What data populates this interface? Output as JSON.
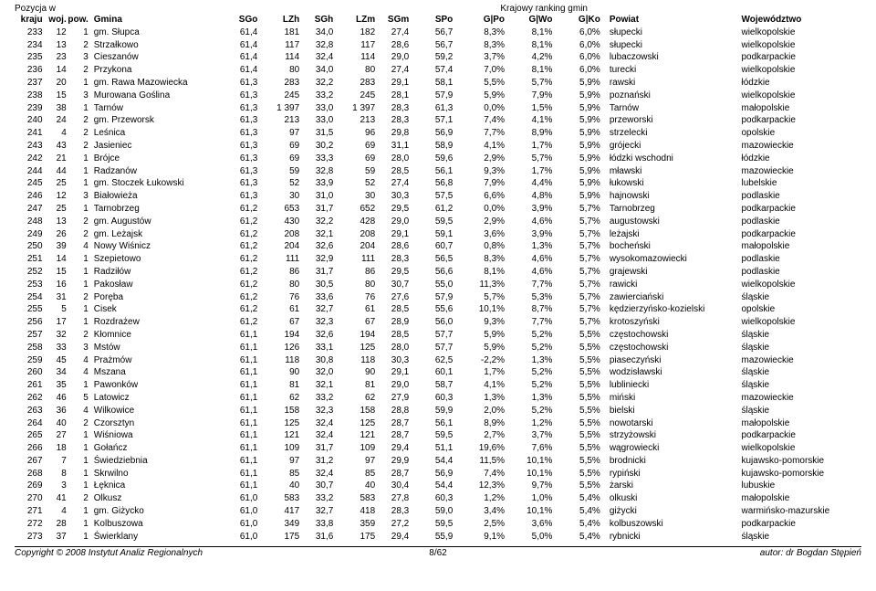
{
  "top_left": "Pozycja w",
  "top_right": "Krajowy ranking gmin",
  "headers": {
    "kraju": "kraju",
    "woj": "woj.",
    "pow": "pow.",
    "gmina": "Gmina",
    "sgo": "SGo",
    "lzh": "LZh",
    "sgh": "SGh",
    "lzm": "LZm",
    "sgm": "SGm",
    "spo": "SPo",
    "gpo": "G|Po",
    "gwo": "G|Wo",
    "gko": "G|Ko",
    "powiat": "Powiat",
    "woje": "Województwo"
  },
  "rows": [
    {
      "kraju": "233",
      "woj": "12",
      "pow": "1",
      "gmina": "gm. Słupca",
      "sgo": "61,4",
      "lzh": "181",
      "sgh": "34,0",
      "lzm": "182",
      "sgm": "27,4",
      "spo": "56,7",
      "gpo": "8,3%",
      "gwo": "8,1%",
      "gko": "6,0%",
      "powiat": "słupecki",
      "woje": "wielkopolskie"
    },
    {
      "kraju": "234",
      "woj": "13",
      "pow": "2",
      "gmina": "Strzałkowo",
      "sgo": "61,4",
      "lzh": "117",
      "sgh": "32,8",
      "lzm": "117",
      "sgm": "28,6",
      "spo": "56,7",
      "gpo": "8,3%",
      "gwo": "8,1%",
      "gko": "6,0%",
      "powiat": "słupecki",
      "woje": "wielkopolskie"
    },
    {
      "kraju": "235",
      "woj": "23",
      "pow": "3",
      "gmina": "Cieszanów",
      "sgo": "61,4",
      "lzh": "114",
      "sgh": "32,4",
      "lzm": "114",
      "sgm": "29,0",
      "spo": "59,2",
      "gpo": "3,7%",
      "gwo": "4,2%",
      "gko": "6,0%",
      "powiat": "lubaczowski",
      "woje": "podkarpackie"
    },
    {
      "kraju": "236",
      "woj": "14",
      "pow": "2",
      "gmina": "Przykona",
      "sgo": "61,4",
      "lzh": "80",
      "sgh": "34,0",
      "lzm": "80",
      "sgm": "27,4",
      "spo": "57,4",
      "gpo": "7,0%",
      "gwo": "8,1%",
      "gko": "6,0%",
      "powiat": "turecki",
      "woje": "wielkopolskie"
    },
    {
      "kraju": "237",
      "woj": "20",
      "pow": "1",
      "gmina": "gm. Rawa Mazowiecka",
      "sgo": "61,3",
      "lzh": "283",
      "sgh": "32,2",
      "lzm": "283",
      "sgm": "29,1",
      "spo": "58,1",
      "gpo": "5,5%",
      "gwo": "5,7%",
      "gko": "5,9%",
      "powiat": "rawski",
      "woje": "łódzkie"
    },
    {
      "kraju": "238",
      "woj": "15",
      "pow": "3",
      "gmina": "Murowana Goślina",
      "sgo": "61,3",
      "lzh": "245",
      "sgh": "33,2",
      "lzm": "245",
      "sgm": "28,1",
      "spo": "57,9",
      "gpo": "5,9%",
      "gwo": "7,9%",
      "gko": "5,9%",
      "powiat": "poznański",
      "woje": "wielkopolskie"
    },
    {
      "kraju": "239",
      "woj": "38",
      "pow": "1",
      "gmina": "Tarnów",
      "sgo": "61,3",
      "lzh": "1 397",
      "sgh": "33,0",
      "lzm": "1 397",
      "sgm": "28,3",
      "spo": "61,3",
      "gpo": "0,0%",
      "gwo": "1,5%",
      "gko": "5,9%",
      "powiat": "Tarnów",
      "woje": "małopolskie"
    },
    {
      "kraju": "240",
      "woj": "24",
      "pow": "2",
      "gmina": "gm. Przeworsk",
      "sgo": "61,3",
      "lzh": "213",
      "sgh": "33,0",
      "lzm": "213",
      "sgm": "28,3",
      "spo": "57,1",
      "gpo": "7,4%",
      "gwo": "4,1%",
      "gko": "5,9%",
      "powiat": "przeworski",
      "woje": "podkarpackie"
    },
    {
      "kraju": "241",
      "woj": "4",
      "pow": "2",
      "gmina": "Leśnica",
      "sgo": "61,3",
      "lzh": "97",
      "sgh": "31,5",
      "lzm": "96",
      "sgm": "29,8",
      "spo": "56,9",
      "gpo": "7,7%",
      "gwo": "8,9%",
      "gko": "5,9%",
      "powiat": "strzelecki",
      "woje": "opolskie"
    },
    {
      "kraju": "243",
      "woj": "43",
      "pow": "2",
      "gmina": "Jasieniec",
      "sgo": "61,3",
      "lzh": "69",
      "sgh": "30,2",
      "lzm": "69",
      "sgm": "31,1",
      "spo": "58,9",
      "gpo": "4,1%",
      "gwo": "1,7%",
      "gko": "5,9%",
      "powiat": "grójecki",
      "woje": "mazowieckie"
    },
    {
      "kraju": "242",
      "woj": "21",
      "pow": "1",
      "gmina": "Brójce",
      "sgo": "61,3",
      "lzh": "69",
      "sgh": "33,3",
      "lzm": "69",
      "sgm": "28,0",
      "spo": "59,6",
      "gpo": "2,9%",
      "gwo": "5,7%",
      "gko": "5,9%",
      "powiat": "łódzki wschodni",
      "woje": "łódzkie"
    },
    {
      "kraju": "244",
      "woj": "44",
      "pow": "1",
      "gmina": "Radzanów",
      "sgo": "61,3",
      "lzh": "59",
      "sgh": "32,8",
      "lzm": "59",
      "sgm": "28,5",
      "spo": "56,1",
      "gpo": "9,3%",
      "gwo": "1,7%",
      "gko": "5,9%",
      "powiat": "mławski",
      "woje": "mazowieckie"
    },
    {
      "kraju": "245",
      "woj": "25",
      "pow": "1",
      "gmina": "gm. Stoczek Łukowski",
      "sgo": "61,3",
      "lzh": "52",
      "sgh": "33,9",
      "lzm": "52",
      "sgm": "27,4",
      "spo": "56,8",
      "gpo": "7,9%",
      "gwo": "4,4%",
      "gko": "5,9%",
      "powiat": "łukowski",
      "woje": "lubelskie"
    },
    {
      "kraju": "246",
      "woj": "12",
      "pow": "3",
      "gmina": "Białowieża",
      "sgo": "61,3",
      "lzh": "30",
      "sgh": "31,0",
      "lzm": "30",
      "sgm": "30,3",
      "spo": "57,5",
      "gpo": "6,6%",
      "gwo": "4,8%",
      "gko": "5,9%",
      "powiat": "hajnowski",
      "woje": "podlaskie"
    },
    {
      "kraju": "247",
      "woj": "25",
      "pow": "1",
      "gmina": "Tarnobrzeg",
      "sgo": "61,2",
      "lzh": "653",
      "sgh": "31,7",
      "lzm": "652",
      "sgm": "29,5",
      "spo": "61,2",
      "gpo": "0,0%",
      "gwo": "3,9%",
      "gko": "5,7%",
      "powiat": "Tarnobrzeg",
      "woje": "podkarpackie"
    },
    {
      "kraju": "248",
      "woj": "13",
      "pow": "2",
      "gmina": "gm. Augustów",
      "sgo": "61,2",
      "lzh": "430",
      "sgh": "32,2",
      "lzm": "428",
      "sgm": "29,0",
      "spo": "59,5",
      "gpo": "2,9%",
      "gwo": "4,6%",
      "gko": "5,7%",
      "powiat": "augustowski",
      "woje": "podlaskie"
    },
    {
      "kraju": "249",
      "woj": "26",
      "pow": "2",
      "gmina": "gm. Leżajsk",
      "sgo": "61,2",
      "lzh": "208",
      "sgh": "32,1",
      "lzm": "208",
      "sgm": "29,1",
      "spo": "59,1",
      "gpo": "3,6%",
      "gwo": "3,9%",
      "gko": "5,7%",
      "powiat": "leżajski",
      "woje": "podkarpackie"
    },
    {
      "kraju": "250",
      "woj": "39",
      "pow": "4",
      "gmina": "Nowy Wiśnicz",
      "sgo": "61,2",
      "lzh": "204",
      "sgh": "32,6",
      "lzm": "204",
      "sgm": "28,6",
      "spo": "60,7",
      "gpo": "0,8%",
      "gwo": "1,3%",
      "gko": "5,7%",
      "powiat": "bocheński",
      "woje": "małopolskie"
    },
    {
      "kraju": "251",
      "woj": "14",
      "pow": "1",
      "gmina": "Szepietowo",
      "sgo": "61,2",
      "lzh": "111",
      "sgh": "32,9",
      "lzm": "111",
      "sgm": "28,3",
      "spo": "56,5",
      "gpo": "8,3%",
      "gwo": "4,6%",
      "gko": "5,7%",
      "powiat": "wysokomazowiecki",
      "woje": "podlaskie"
    },
    {
      "kraju": "252",
      "woj": "15",
      "pow": "1",
      "gmina": "Radziłów",
      "sgo": "61,2",
      "lzh": "86",
      "sgh": "31,7",
      "lzm": "86",
      "sgm": "29,5",
      "spo": "56,6",
      "gpo": "8,1%",
      "gwo": "4,6%",
      "gko": "5,7%",
      "powiat": "grajewski",
      "woje": "podlaskie"
    },
    {
      "kraju": "253",
      "woj": "16",
      "pow": "1",
      "gmina": "Pakosław",
      "sgo": "61,2",
      "lzh": "80",
      "sgh": "30,5",
      "lzm": "80",
      "sgm": "30,7",
      "spo": "55,0",
      "gpo": "11,3%",
      "gwo": "7,7%",
      "gko": "5,7%",
      "powiat": "rawicki",
      "woje": "wielkopolskie"
    },
    {
      "kraju": "254",
      "woj": "31",
      "pow": "2",
      "gmina": "Poręba",
      "sgo": "61,2",
      "lzh": "76",
      "sgh": "33,6",
      "lzm": "76",
      "sgm": "27,6",
      "spo": "57,9",
      "gpo": "5,7%",
      "gwo": "5,3%",
      "gko": "5,7%",
      "powiat": "zawierciański",
      "woje": "śląskie"
    },
    {
      "kraju": "255",
      "woj": "5",
      "pow": "1",
      "gmina": "Cisek",
      "sgo": "61,2",
      "lzh": "61",
      "sgh": "32,7",
      "lzm": "61",
      "sgm": "28,5",
      "spo": "55,6",
      "gpo": "10,1%",
      "gwo": "8,7%",
      "gko": "5,7%",
      "powiat": "kędzierzyńsko-kozielski",
      "woje": "opolskie"
    },
    {
      "kraju": "256",
      "woj": "17",
      "pow": "1",
      "gmina": "Rozdrażew",
      "sgo": "61,2",
      "lzh": "67",
      "sgh": "32,3",
      "lzm": "67",
      "sgm": "28,9",
      "spo": "56,0",
      "gpo": "9,3%",
      "gwo": "7,7%",
      "gko": "5,7%",
      "powiat": "krotoszyński",
      "woje": "wielkopolskie"
    },
    {
      "kraju": "257",
      "woj": "32",
      "pow": "2",
      "gmina": "Kłomnice",
      "sgo": "61,1",
      "lzh": "194",
      "sgh": "32,6",
      "lzm": "194",
      "sgm": "28,5",
      "spo": "57,7",
      "gpo": "5,9%",
      "gwo": "5,2%",
      "gko": "5,5%",
      "powiat": "częstochowski",
      "woje": "śląskie"
    },
    {
      "kraju": "258",
      "woj": "33",
      "pow": "3",
      "gmina": "Mstów",
      "sgo": "61,1",
      "lzh": "126",
      "sgh": "33,1",
      "lzm": "125",
      "sgm": "28,0",
      "spo": "57,7",
      "gpo": "5,9%",
      "gwo": "5,2%",
      "gko": "5,5%",
      "powiat": "częstochowski",
      "woje": "śląskie"
    },
    {
      "kraju": "259",
      "woj": "45",
      "pow": "4",
      "gmina": "Prażmów",
      "sgo": "61,1",
      "lzh": "118",
      "sgh": "30,8",
      "lzm": "118",
      "sgm": "30,3",
      "spo": "62,5",
      "gpo": "-2,2%",
      "gwo": "1,3%",
      "gko": "5,5%",
      "powiat": "piaseczyński",
      "woje": "mazowieckie"
    },
    {
      "kraju": "260",
      "woj": "34",
      "pow": "4",
      "gmina": "Mszana",
      "sgo": "61,1",
      "lzh": "90",
      "sgh": "32,0",
      "lzm": "90",
      "sgm": "29,1",
      "spo": "60,1",
      "gpo": "1,7%",
      "gwo": "5,2%",
      "gko": "5,5%",
      "powiat": "wodzisławski",
      "woje": "śląskie"
    },
    {
      "kraju": "261",
      "woj": "35",
      "pow": "1",
      "gmina": "Pawonków",
      "sgo": "61,1",
      "lzh": "81",
      "sgh": "32,1",
      "lzm": "81",
      "sgm": "29,0",
      "spo": "58,7",
      "gpo": "4,1%",
      "gwo": "5,2%",
      "gko": "5,5%",
      "powiat": "lubliniecki",
      "woje": "śląskie"
    },
    {
      "kraju": "262",
      "woj": "46",
      "pow": "5",
      "gmina": "Latowicz",
      "sgo": "61,1",
      "lzh": "62",
      "sgh": "33,2",
      "lzm": "62",
      "sgm": "27,9",
      "spo": "60,3",
      "gpo": "1,3%",
      "gwo": "1,3%",
      "gko": "5,5%",
      "powiat": "miński",
      "woje": "mazowieckie"
    },
    {
      "kraju": "263",
      "woj": "36",
      "pow": "4",
      "gmina": "Wilkowice",
      "sgo": "61,1",
      "lzh": "158",
      "sgh": "32,3",
      "lzm": "158",
      "sgm": "28,8",
      "spo": "59,9",
      "gpo": "2,0%",
      "gwo": "5,2%",
      "gko": "5,5%",
      "powiat": "bielski",
      "woje": "śląskie"
    },
    {
      "kraju": "264",
      "woj": "40",
      "pow": "2",
      "gmina": "Czorsztyn",
      "sgo": "61,1",
      "lzh": "125",
      "sgh": "32,4",
      "lzm": "125",
      "sgm": "28,7",
      "spo": "56,1",
      "gpo": "8,9%",
      "gwo": "1,2%",
      "gko": "5,5%",
      "powiat": "nowotarski",
      "woje": "małopolskie"
    },
    {
      "kraju": "265",
      "woj": "27",
      "pow": "1",
      "gmina": "Wiśniowa",
      "sgo": "61,1",
      "lzh": "121",
      "sgh": "32,4",
      "lzm": "121",
      "sgm": "28,7",
      "spo": "59,5",
      "gpo": "2,7%",
      "gwo": "3,7%",
      "gko": "5,5%",
      "powiat": "strzyżowski",
      "woje": "podkarpackie"
    },
    {
      "kraju": "266",
      "woj": "18",
      "pow": "1",
      "gmina": "Gołańcz",
      "sgo": "61,1",
      "lzh": "109",
      "sgh": "31,7",
      "lzm": "109",
      "sgm": "29,4",
      "spo": "51,1",
      "gpo": "19,6%",
      "gwo": "7,6%",
      "gko": "5,5%",
      "powiat": "wągrowiecki",
      "woje": "wielkopolskie"
    },
    {
      "kraju": "267",
      "woj": "7",
      "pow": "1",
      "gmina": "Świedziebnia",
      "sgo": "61,1",
      "lzh": "97",
      "sgh": "31,2",
      "lzm": "97",
      "sgm": "29,9",
      "spo": "54,4",
      "gpo": "11,5%",
      "gwo": "10,1%",
      "gko": "5,5%",
      "powiat": "brodnicki",
      "woje": "kujawsko-pomorskie"
    },
    {
      "kraju": "268",
      "woj": "8",
      "pow": "1",
      "gmina": "Skrwilno",
      "sgo": "61,1",
      "lzh": "85",
      "sgh": "32,4",
      "lzm": "85",
      "sgm": "28,7",
      "spo": "56,9",
      "gpo": "7,4%",
      "gwo": "10,1%",
      "gko": "5,5%",
      "powiat": "rypiński",
      "woje": "kujawsko-pomorskie"
    },
    {
      "kraju": "269",
      "woj": "3",
      "pow": "1",
      "gmina": "Łęknica",
      "sgo": "61,1",
      "lzh": "40",
      "sgh": "30,7",
      "lzm": "40",
      "sgm": "30,4",
      "spo": "54,4",
      "gpo": "12,3%",
      "gwo": "9,7%",
      "gko": "5,5%",
      "powiat": "żarski",
      "woje": "lubuskie"
    },
    {
      "kraju": "270",
      "woj": "41",
      "pow": "2",
      "gmina": "Olkusz",
      "sgo": "61,0",
      "lzh": "583",
      "sgh": "33,2",
      "lzm": "583",
      "sgm": "27,8",
      "spo": "60,3",
      "gpo": "1,2%",
      "gwo": "1,0%",
      "gko": "5,4%",
      "powiat": "olkuski",
      "woje": "małopolskie"
    },
    {
      "kraju": "271",
      "woj": "4",
      "pow": "1",
      "gmina": "gm. Giżycko",
      "sgo": "61,0",
      "lzh": "417",
      "sgh": "32,7",
      "lzm": "418",
      "sgm": "28,3",
      "spo": "59,0",
      "gpo": "3,4%",
      "gwo": "10,1%",
      "gko": "5,4%",
      "powiat": "giżycki",
      "woje": "warmińsko-mazurskie"
    },
    {
      "kraju": "272",
      "woj": "28",
      "pow": "1",
      "gmina": "Kolbuszowa",
      "sgo": "61,0",
      "lzh": "349",
      "sgh": "33,8",
      "lzm": "359",
      "sgm": "27,2",
      "spo": "59,5",
      "gpo": "2,5%",
      "gwo": "3,6%",
      "gko": "5,4%",
      "powiat": "kolbuszowski",
      "woje": "podkarpackie"
    },
    {
      "kraju": "273",
      "woj": "37",
      "pow": "1",
      "gmina": "Świerklany",
      "sgo": "61,0",
      "lzh": "175",
      "sgh": "31,6",
      "lzm": "175",
      "sgm": "29,4",
      "spo": "55,9",
      "gpo": "9,1%",
      "gwo": "5,0%",
      "gko": "5,4%",
      "powiat": "rybnicki",
      "woje": "śląskie"
    }
  ],
  "footer": {
    "left": "Copyright © 2008 Instytut Analiz Regionalnych",
    "center": "8/62",
    "right": "autor: dr Bogdan Stępień"
  }
}
